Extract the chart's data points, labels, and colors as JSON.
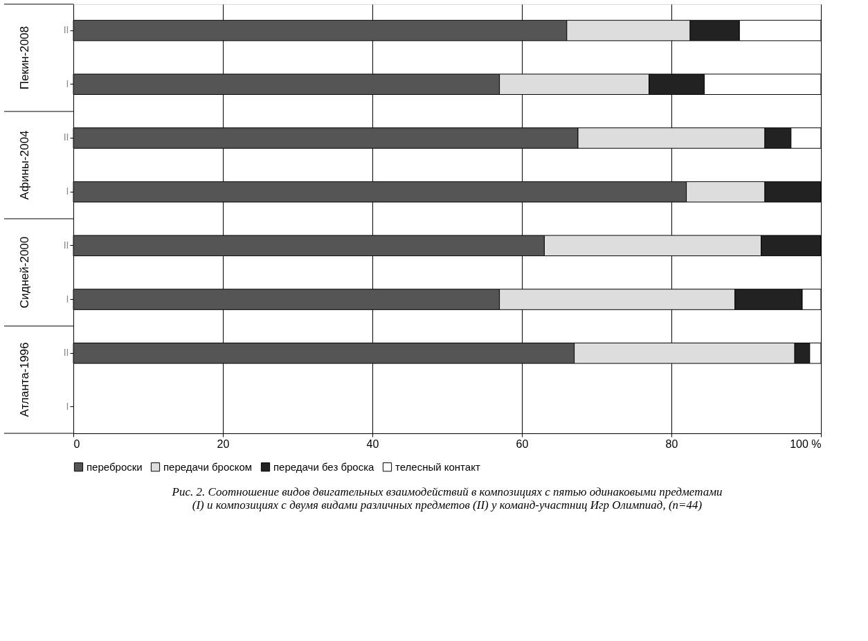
{
  "chart_data": {
    "type": "bar",
    "orientation": "horizontal",
    "stacked": true,
    "title": "Рис. 2. Соотношение видов двигательных взаимодействий в композициях с пятью одинаковыми предметами\n(I) и композициях с двумя видами различных  предметов (II) у команд-участниц Игр Олимпиад, (n=44)",
    "categories": [
      "II",
      "I",
      "II",
      "I",
      "II",
      "I",
      "II",
      "I"
    ],
    "annotations": [
      "Пекин-2008",
      "Афины-2004",
      "Сидней-2000",
      "Атланта-1996"
    ],
    "series": [
      {
        "name": "переброски",
        "color": "#555555",
        "values": [
          66,
          57,
          67.5,
          82,
          63,
          57,
          67,
          null
        ]
      },
      {
        "name": "передачи броском",
        "color": "#dddddd",
        "values": [
          16.5,
          20,
          25,
          10.5,
          29,
          31.5,
          29.5,
          null
        ]
      },
      {
        "name": "передачи без броска",
        "color": "#222222",
        "values": [
          6.6,
          7.4,
          3.5,
          7.5,
          8,
          9,
          2,
          null
        ]
      },
      {
        "name": "телесный контакт",
        "color": "#ffffff",
        "values": [
          10.9,
          15.6,
          4,
          null,
          null,
          2.5,
          1.5,
          null
        ]
      }
    ],
    "xlim": [
      0,
      100
    ],
    "xticks": [
      0,
      20,
      40,
      60,
      80,
      {
        "value": 100,
        "label": "100 %"
      }
    ],
    "grid": "x",
    "legend": "bottom"
  }
}
